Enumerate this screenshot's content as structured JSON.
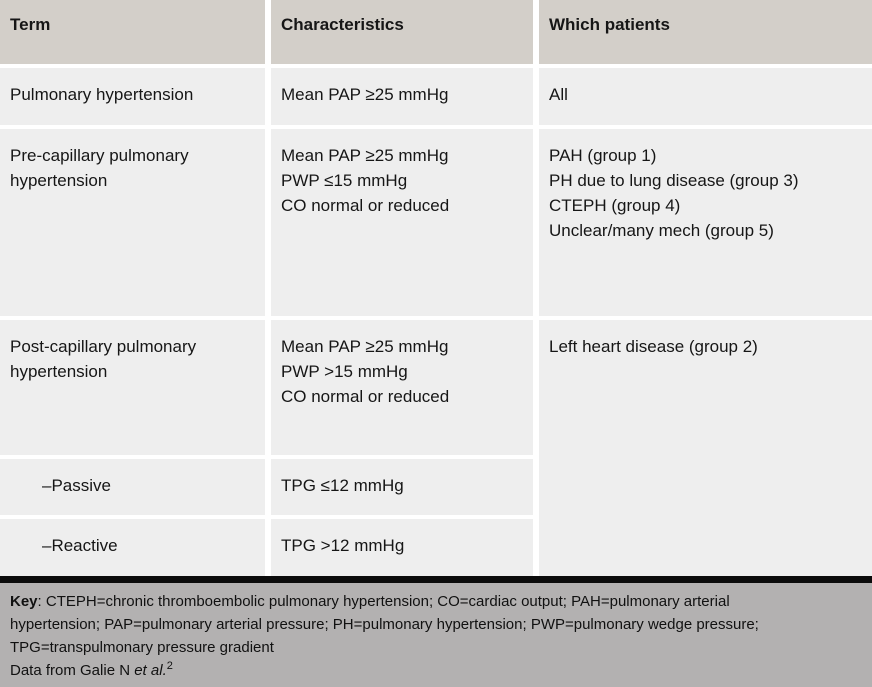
{
  "table": {
    "header": {
      "term": "Term",
      "characteristics": "Characteristics",
      "which_patients": "Which patients"
    },
    "rows": [
      {
        "term": "Pulmonary hypertension",
        "characteristics": "Mean PAP ≥25 mmHg",
        "which_patients": "All"
      },
      {
        "term": "Pre-capillary pulmonary hypertension",
        "characteristics": "Mean PAP ≥25 mmHg\nPWP ≤15 mmHg\nCO normal or reduced",
        "which_patients": "PAH (group 1)\nPH due to lung disease (group 3)\nCTEPH (group 4)\nUnclear/many mech (group 5)"
      },
      {
        "term": "Post-capillary pulmonary hypertension",
        "characteristics": "Mean PAP ≥25 mmHg\nPWP >15 mmHg\nCO normal or reduced",
        "which_patients": "Left heart disease (group 2)"
      },
      {
        "term": "–Passive",
        "characteristics": "TPG ≤12 mmHg"
      },
      {
        "term": "–Reactive",
        "characteristics": "TPG >12 mmHg"
      }
    ]
  },
  "footer": {
    "key_label": "Key",
    "key_text": ": CTEPH=chronic thromboembolic pulmonary hypertension; CO=cardiac output; PAH=pulmonary arterial\nhypertension; PAP=pulmonary arterial pressure; PH=pulmonary hypertension; PWP=pulmonary wedge pressure;\nTPG=transpulmonary pressure gradient",
    "source_prefix": "Data from Galie N ",
    "source_italic": "et al.",
    "source_superscript": "2"
  },
  "colors": {
    "header_bg": "#d3cfc9",
    "cell_bg": "#eeeeee",
    "gutter": "#ffffff",
    "divider_bar": "#0b0b0b",
    "footer_bg": "#b3b1b1",
    "text": "#161616"
  }
}
